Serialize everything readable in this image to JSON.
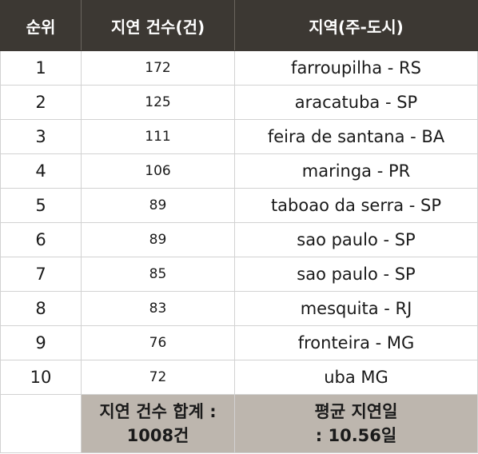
{
  "headers": {
    "rank": "순위",
    "count": "지연 건수(건)",
    "region": "지역(주-도시)"
  },
  "rows": [
    {
      "rank": "1",
      "count": "172",
      "region": "farroupilha - RS"
    },
    {
      "rank": "2",
      "count": "125",
      "region": "aracatuba - SP"
    },
    {
      "rank": "3",
      "count": "111",
      "region": "feira de santana - BA"
    },
    {
      "rank": "4",
      "count": "106",
      "region": "maringa - PR"
    },
    {
      "rank": "5",
      "count": "89",
      "region": "taboao da serra - SP"
    },
    {
      "rank": "6",
      "count": "89",
      "region": "sao paulo - SP"
    },
    {
      "rank": "7",
      "count": "85",
      "region": "sao paulo - SP"
    },
    {
      "rank": "8",
      "count": "83",
      "region": "mesquita - RJ"
    },
    {
      "rank": "9",
      "count": "76",
      "region": "fronteira - MG"
    },
    {
      "rank": "10",
      "count": "72",
      "region": "uba MG"
    }
  ],
  "footer": {
    "sum_line1": "지연 건수 합계 :",
    "sum_line2": "1008건",
    "avg_line1": "평균 지연일",
    "avg_line2": ": 10.56일"
  }
}
